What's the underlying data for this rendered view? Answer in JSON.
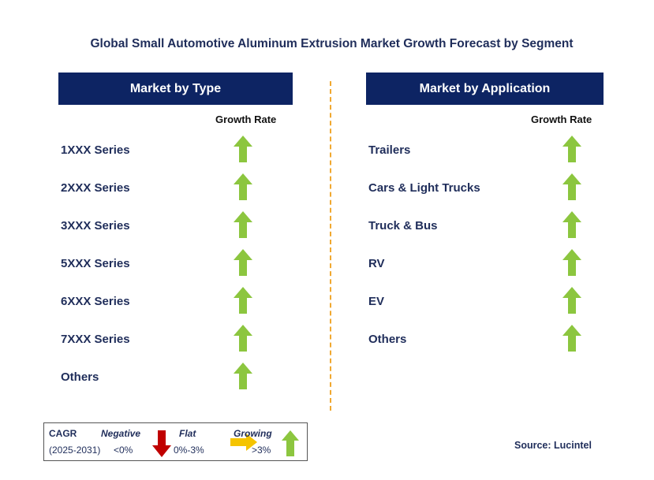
{
  "title": "Global Small Automotive Aluminum Extrusion Market Growth Forecast by Segment",
  "left_panel": {
    "header": "Market by Type",
    "growth_label": "Growth Rate",
    "items": [
      {
        "label": "1XXX Series",
        "trend": "growing"
      },
      {
        "label": "2XXX Series",
        "trend": "growing"
      },
      {
        "label": "3XXX Series",
        "trend": "growing"
      },
      {
        "label": "5XXX Series",
        "trend": "growing"
      },
      {
        "label": "6XXX Series",
        "trend": "growing"
      },
      {
        "label": "7XXX Series",
        "trend": "growing"
      },
      {
        "label": "Others",
        "trend": "growing"
      }
    ]
  },
  "right_panel": {
    "header": "Market by Application",
    "growth_label": "Growth Rate",
    "items": [
      {
        "label": "Trailers",
        "trend": "growing"
      },
      {
        "label": "Cars & Light Trucks",
        "trend": "growing"
      },
      {
        "label": "Truck & Bus",
        "trend": "growing"
      },
      {
        "label": "RV",
        "trend": "growing"
      },
      {
        "label": "EV",
        "trend": "growing"
      },
      {
        "label": "Others",
        "trend": "growing"
      }
    ]
  },
  "legend": {
    "cagr_label": "CAGR",
    "period": "(2025-2031)",
    "negative_label": "Negative",
    "negative_range": "<0%",
    "flat_label": "Flat",
    "flat_range": "0%-3%",
    "growing_label": "Growing",
    "growing_range": ">3%"
  },
  "source": "Source: Lucintel",
  "colors": {
    "header_bg": "#0d2463",
    "text": "#1f2d5a",
    "growing": "#8cc63f",
    "negative": "#c00000",
    "flat": "#f5c400",
    "divider": "#f0a830"
  }
}
